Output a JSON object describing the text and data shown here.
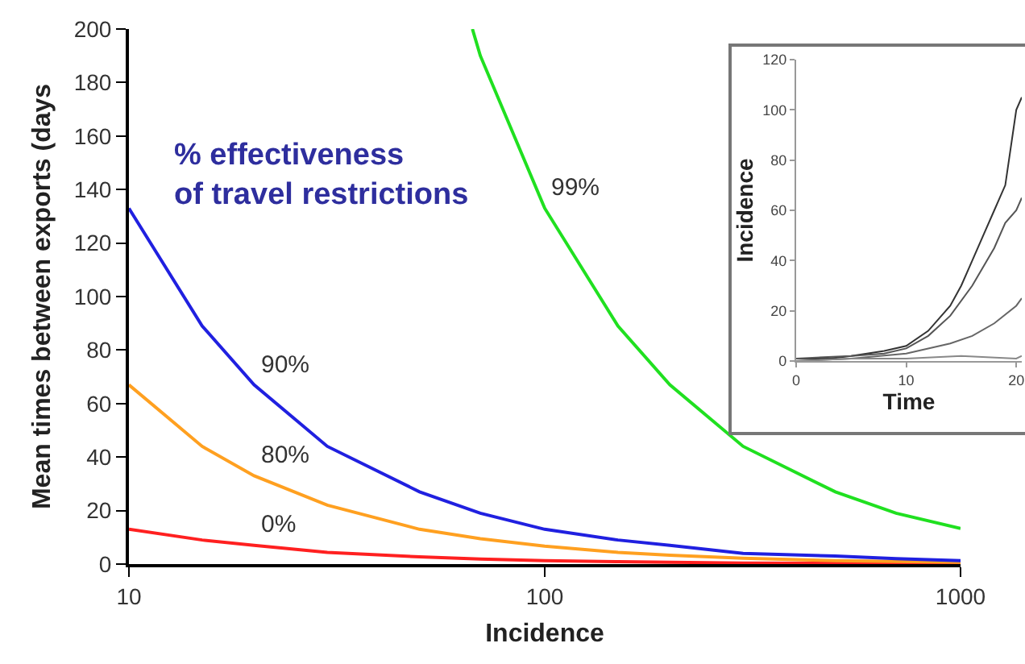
{
  "chart_data": [
    {
      "type": "line",
      "xlabel": "Incidence",
      "ylabel": "Mean times between exports (days",
      "log": "x",
      "xlim": [
        10,
        1000
      ],
      "xticks": [
        10,
        100,
        1000
      ],
      "ylim": [
        0,
        200
      ],
      "yticks": [
        0,
        20,
        40,
        60,
        80,
        100,
        120,
        140,
        160,
        180,
        200
      ],
      "grid": false,
      "marker": "none",
      "line_style": "solid",
      "annotations": [
        "% effectiveness\nof travel restrictions"
      ],
      "x": [
        10,
        15,
        20,
        30,
        50,
        70,
        100,
        150,
        200,
        300,
        500,
        700,
        1000
      ],
      "series": [
        {
          "name": "0%",
          "color": "#ff2020",
          "values": [
            13,
            9,
            7,
            4.4,
            2.7,
            1.9,
            1.3,
            0.9,
            0.7,
            0.4,
            0.3,
            0.2,
            0.1
          ]
        },
        {
          "name": "80%",
          "color": "#ffa020",
          "values": [
            67,
            44,
            33,
            22,
            13,
            9.5,
            6.7,
            4.4,
            3.3,
            2.2,
            1.3,
            1,
            0.7
          ]
        },
        {
          "name": "90%",
          "color": "#2020e0",
          "values": [
            133,
            89,
            67,
            44,
            27,
            19,
            13,
            9,
            7,
            4,
            3,
            2,
            1.3
          ]
        },
        {
          "name": "99%",
          "color": "#20e020",
          "x": [
            67,
            70,
            100,
            150,
            200,
            300,
            500,
            700,
            1000
          ],
          "values": [
            200,
            190,
            133,
            89,
            67,
            44,
            27,
            19,
            13.3
          ]
        }
      ]
    },
    {
      "type": "line",
      "xlabel": "Time",
      "ylabel": "Incidence",
      "xlim": [
        0,
        20.5
      ],
      "xticks": [
        0,
        10,
        20
      ],
      "ylim": [
        0,
        120
      ],
      "yticks": [
        0,
        20,
        40,
        60,
        80,
        100,
        120
      ],
      "grid": false,
      "marker": "none",
      "line_style": "solid",
      "series": [
        {
          "color": "#333333",
          "x": [
            0,
            3,
            5,
            8,
            10,
            12,
            14,
            15,
            16,
            17,
            18,
            19,
            20,
            20.5
          ],
          "values": [
            1,
            1,
            2,
            4,
            6,
            12,
            22,
            30,
            40,
            50,
            60,
            70,
            100,
            105
          ]
        },
        {
          "color": "#555555",
          "x": [
            0,
            5,
            8,
            10,
            12,
            14,
            16,
            18,
            19,
            20,
            20.5
          ],
          "values": [
            1,
            2,
            3,
            5,
            10,
            18,
            30,
            45,
            55,
            60,
            65
          ]
        },
        {
          "color": "#666666",
          "x": [
            0,
            5,
            10,
            12,
            14,
            16,
            18,
            20,
            20.5
          ],
          "values": [
            0,
            1,
            3,
            5,
            7,
            10,
            15,
            22,
            25
          ]
        },
        {
          "color": "#888888",
          "x": [
            0,
            5,
            10,
            15,
            20,
            20.5
          ],
          "values": [
            0,
            1,
            1,
            2,
            1,
            2
          ]
        }
      ]
    }
  ]
}
